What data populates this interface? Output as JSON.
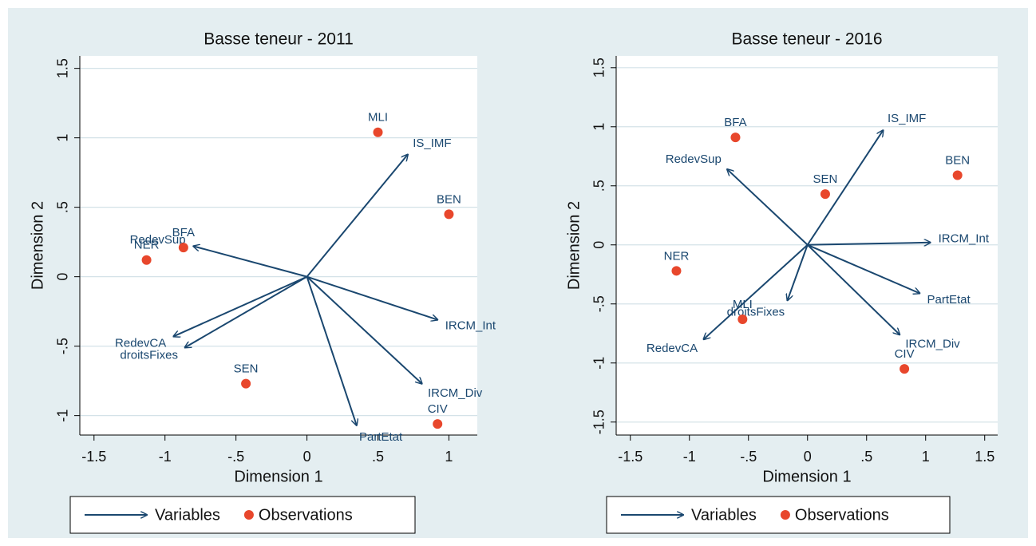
{
  "chart_data": [
    {
      "type": "biplot",
      "title": "Basse teneur - 2011",
      "xlabel": "Dimension 1",
      "ylabel": "Dimension 2",
      "xlim": [
        -1.6,
        1.2
      ],
      "ylim": [
        -1.14,
        1.59
      ],
      "xticks": [
        -1.5,
        -1,
        {
          "value": -0.5,
          "label": "-.5"
        },
        0,
        {
          "value": 0.5,
          "label": ".5"
        },
        1
      ],
      "yticks": [
        -1,
        {
          "value": -0.5,
          "label": "-.5"
        },
        0,
        {
          "value": 0.5,
          "label": ".5"
        },
        1,
        1.5
      ],
      "grid": true,
      "legend": "bottom",
      "series": [
        {
          "name": "Variables",
          "marker": "arrow",
          "color": "#1a476f",
          "labels": [
            "IS_IMF",
            "RedevSup",
            "RedevCA",
            "droitsFixes",
            "IRCM_Int",
            "IRCM_Div",
            "PartEtat"
          ],
          "x": [
            0.71,
            -0.8,
            -0.94,
            -0.86,
            0.92,
            0.81,
            0.35
          ],
          "y": [
            0.88,
            0.22,
            -0.43,
            -0.51,
            -0.31,
            -0.77,
            -1.07
          ]
        },
        {
          "name": "Observations",
          "marker": "dot",
          "color": "#e8472c",
          "labels": [
            "MLI",
            "BEN",
            "BFA",
            "NER",
            "SEN",
            "CIV"
          ],
          "x": [
            0.5,
            1.0,
            -0.87,
            -1.13,
            -0.43,
            0.92
          ],
          "y": [
            1.04,
            0.45,
            0.21,
            0.12,
            -0.77,
            -1.06
          ]
        }
      ]
    },
    {
      "type": "biplot",
      "title": "Basse teneur - 2016",
      "xlabel": "Dimension 1",
      "ylabel": "Dimension 2",
      "xlim": [
        -1.62,
        1.61
      ],
      "ylim": [
        -1.61,
        1.6
      ],
      "xticks": [
        -1.5,
        -1,
        {
          "value": -0.5,
          "label": "-.5"
        },
        0,
        {
          "value": 0.5,
          "label": ".5"
        },
        1,
        1.5
      ],
      "yticks": [
        -1.5,
        -1,
        {
          "value": -0.5,
          "label": "-.5"
        },
        0,
        {
          "value": 0.5,
          "label": ".5"
        },
        1,
        1.5
      ],
      "grid": true,
      "legend": "bottom",
      "series": [
        {
          "name": "Variables",
          "marker": "arrow",
          "color": "#1a476f",
          "labels": [
            "IS_IMF",
            "RedevSup",
            "IRCM_Int",
            "PartEtat",
            "IRCM_Div",
            "droitsFixes",
            "RedevCA"
          ],
          "x": [
            0.64,
            -0.68,
            1.04,
            0.95,
            0.78,
            -0.17,
            -0.88
          ],
          "y": [
            0.97,
            0.64,
            0.02,
            -0.41,
            -0.76,
            -0.47,
            -0.8
          ]
        },
        {
          "name": "Observations",
          "marker": "dot",
          "color": "#e8472c",
          "labels": [
            "BFA",
            "SEN",
            "BEN",
            "NER",
            "MLI",
            "CIV"
          ],
          "x": [
            -0.61,
            0.15,
            1.27,
            -1.11,
            -0.55,
            0.82
          ],
          "y": [
            0.91,
            0.43,
            0.59,
            -0.22,
            -0.63,
            -1.05
          ]
        }
      ]
    }
  ]
}
